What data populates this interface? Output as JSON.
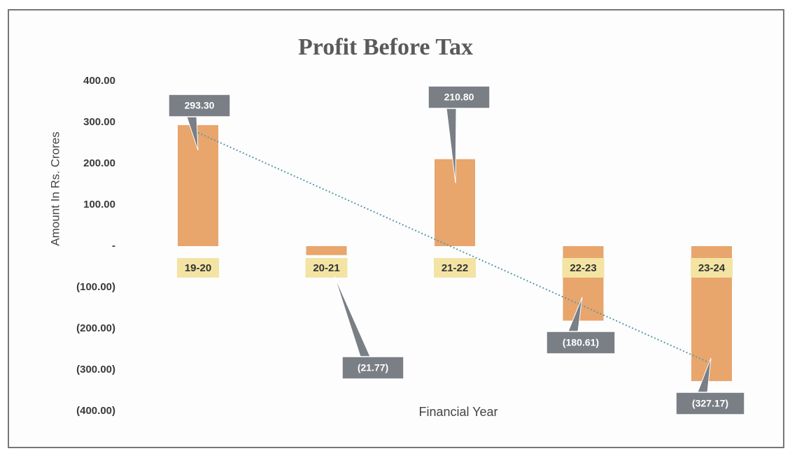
{
  "chart_data": {
    "type": "bar",
    "title": "Profit Before Tax",
    "x_label": "Financial Year",
    "y_label": "Amount In Rs. Crores",
    "categories": [
      "19-20",
      "20-21",
      "21-22",
      "22-23",
      "23-24"
    ],
    "values": [
      293.3,
      -21.77,
      210.8,
      -180.61,
      -327.17
    ],
    "value_labels": [
      "293.30",
      "(21.77)",
      "210.80",
      "(180.61)",
      "(327.17)"
    ],
    "color": "#e8a56c",
    "ylim": [
      -400,
      400
    ],
    "yticks": [
      {
        "value": 400,
        "label": "400.00"
      },
      {
        "value": 300,
        "label": "300.00"
      },
      {
        "value": 200,
        "label": "200.00"
      },
      {
        "value": 100,
        "label": "100.00"
      },
      {
        "value": 0,
        "label": "-"
      },
      {
        "value": -100,
        "label": "(100.00)"
      },
      {
        "value": -200,
        "label": "(200.00)"
      },
      {
        "value": -300,
        "label": "(300.00)"
      },
      {
        "value": -400,
        "label": "(400.00)"
      }
    ],
    "grid": false,
    "trendline": true
  }
}
